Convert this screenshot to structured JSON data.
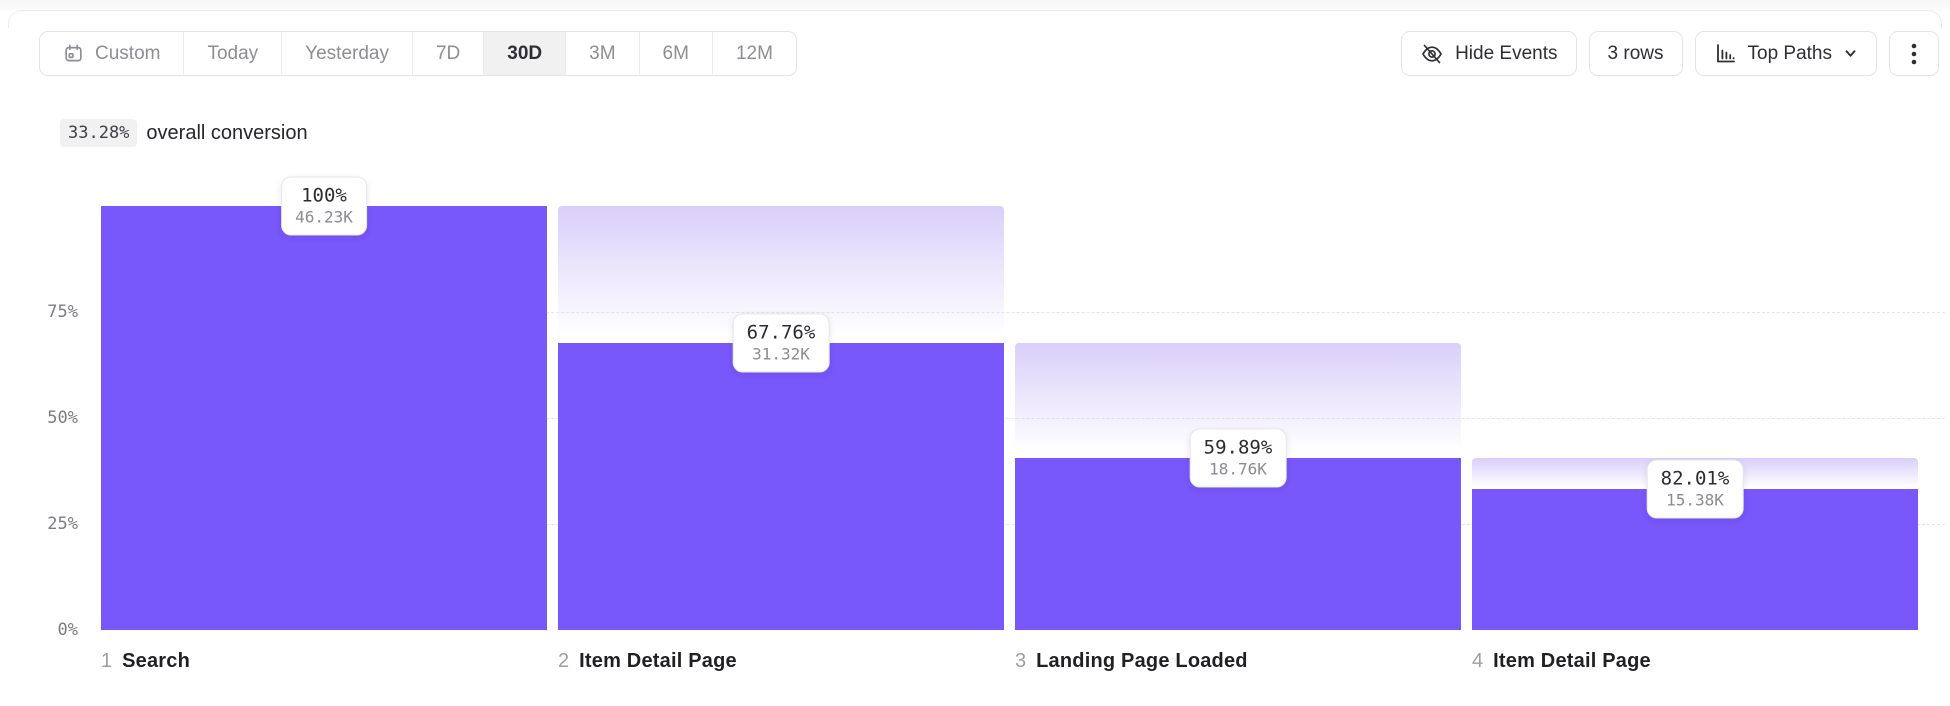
{
  "toolbar": {
    "date_ranges": [
      {
        "label": "Custom",
        "selected": false,
        "icon": "calendar-icon"
      },
      {
        "label": "Today",
        "selected": false
      },
      {
        "label": "Yesterday",
        "selected": false
      },
      {
        "label": "7D",
        "selected": false
      },
      {
        "label": "30D",
        "selected": true
      },
      {
        "label": "3M",
        "selected": false
      },
      {
        "label": "6M",
        "selected": false
      },
      {
        "label": "12M",
        "selected": false
      }
    ],
    "hide_events": {
      "label": "Hide Events",
      "icon": "eye-off-icon"
    },
    "rows": {
      "label": "3 rows"
    },
    "top_paths": {
      "label": "Top Paths",
      "icon": "bar-chart-icon",
      "chevron": "chevron-down-icon"
    },
    "more_menu_icon": "kebab-menu-icon"
  },
  "summary": {
    "percent": "33.28%",
    "text": "overall conversion"
  },
  "chart_data": {
    "type": "bar",
    "subtype": "funnel",
    "title": "33.28% overall conversion",
    "ylabel": "",
    "xlabel": "",
    "ylim": [
      0,
      100
    ],
    "grid": "dashed horizontal at 25/50/75",
    "legend": "none",
    "y_ticks": [
      {
        "label": "75%",
        "pct": 75
      },
      {
        "label": "50%",
        "pct": 50
      },
      {
        "label": "25%",
        "pct": 25
      },
      {
        "label": "0%",
        "pct": 0
      }
    ],
    "gridlines_pct": [
      75,
      50,
      25
    ],
    "steps": [
      {
        "index": "1",
        "name": "Search",
        "conversion_label": "100%",
        "count_label": "46.23K",
        "pct_of_total": 100
      },
      {
        "index": "2",
        "name": "Item Detail Page",
        "conversion_label": "67.76%",
        "count_label": "31.32K",
        "pct_of_total": 67.76
      },
      {
        "index": "3",
        "name": "Landing Page Loaded",
        "conversion_label": "59.89%",
        "count_label": "18.76K",
        "pct_of_total": 40.58
      },
      {
        "index": "4",
        "name": "Item Detail Page",
        "conversion_label": "82.01%",
        "count_label": "15.38K",
        "pct_of_total": 33.27
      }
    ],
    "colors": {
      "bar": "#7857fb",
      "ghost_top": "#d9cffa",
      "grid": "#e4e4e8"
    }
  }
}
